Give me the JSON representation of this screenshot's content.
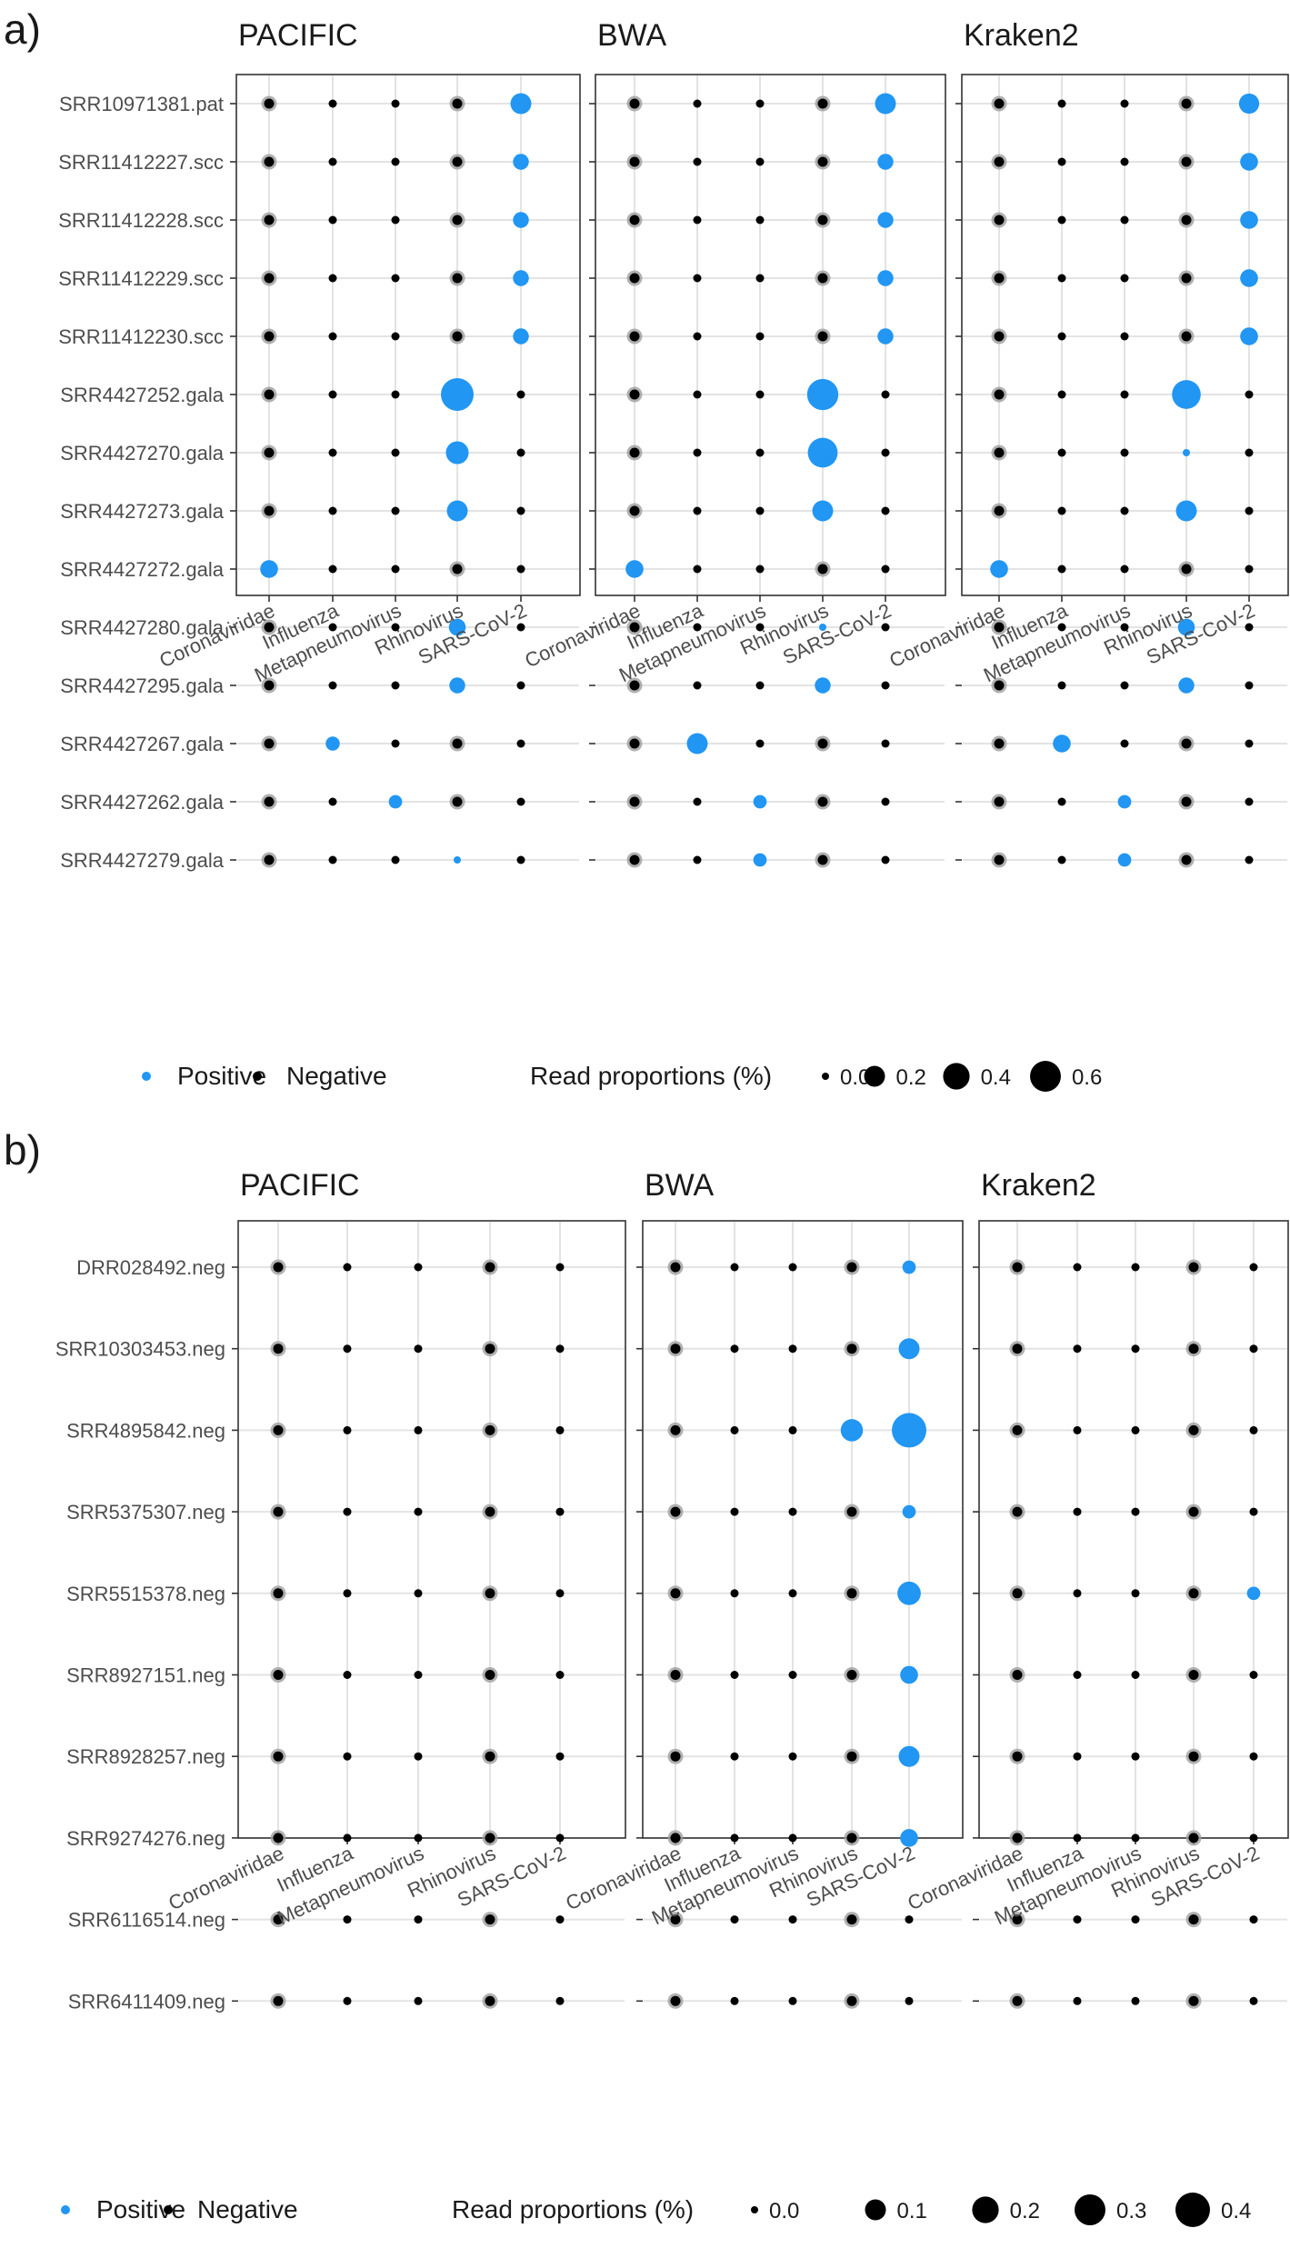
{
  "colors": {
    "positive": "#2196F3",
    "negative": "#000000",
    "halo": "#9e9e9e",
    "grid": "#e3e3e3",
    "panel_border": "#333333",
    "text": "#1a1a1a",
    "tick_text": "#4d4d4d"
  },
  "categories": [
    "Coronaviridae",
    "Influenza",
    "Metapneumovirus",
    "Rhinovirus",
    "SARS-CoV-2"
  ],
  "chart_data": [
    {
      "type": "scatter",
      "tag": "a)",
      "panels": [
        "PACIFIC",
        "BWA",
        "Kraken2"
      ],
      "samples": [
        "SRR10971381.pat",
        "SRR11412227.scc",
        "SRR11412228.scc",
        "SRR11412229.scc",
        "SRR11412230.scc",
        "SRR4427252.gala",
        "SRR4427270.gala",
        "SRR4427273.gala",
        "SRR4427272.gala",
        "SRR4427280.gala",
        "SRR4427295.gala",
        "SRR4427267.gala",
        "SRR4427262.gala",
        "SRR4427279.gala"
      ],
      "positives": {
        "PACIFIC": [
          [
            0,
            4,
            0.2
          ],
          [
            1,
            4,
            0.08
          ],
          [
            2,
            4,
            0.08
          ],
          [
            3,
            4,
            0.08
          ],
          [
            4,
            4,
            0.08
          ],
          [
            5,
            3,
            0.7
          ],
          [
            6,
            3,
            0.26
          ],
          [
            7,
            3,
            0.2
          ],
          [
            8,
            0,
            0.12
          ],
          [
            9,
            3,
            0.1
          ],
          [
            10,
            3,
            0.08
          ],
          [
            11,
            1,
            0.05
          ],
          [
            12,
            2,
            0.04
          ],
          [
            13,
            3,
            0.0
          ]
        ],
        "BWA": [
          [
            0,
            4,
            0.2
          ],
          [
            1,
            4,
            0.08
          ],
          [
            2,
            4,
            0.08
          ],
          [
            3,
            4,
            0.08
          ],
          [
            4,
            4,
            0.08
          ],
          [
            5,
            3,
            0.62
          ],
          [
            6,
            3,
            0.55
          ],
          [
            7,
            3,
            0.2
          ],
          [
            8,
            0,
            0.12
          ],
          [
            9,
            3,
            0.0
          ],
          [
            10,
            3,
            0.08
          ],
          [
            11,
            1,
            0.2
          ],
          [
            12,
            2,
            0.04
          ],
          [
            13,
            2,
            0.04
          ]
        ],
        "Kraken2": [
          [
            0,
            4,
            0.18
          ],
          [
            1,
            4,
            0.12
          ],
          [
            2,
            4,
            0.12
          ],
          [
            3,
            4,
            0.12
          ],
          [
            4,
            4,
            0.12
          ],
          [
            5,
            3,
            0.5
          ],
          [
            6,
            3,
            0.0
          ],
          [
            7,
            3,
            0.2
          ],
          [
            8,
            0,
            0.12
          ],
          [
            9,
            3,
            0.1
          ],
          [
            10,
            3,
            0.08
          ],
          [
            11,
            1,
            0.12
          ],
          [
            12,
            2,
            0.04
          ],
          [
            13,
            2,
            0.04
          ]
        ]
      },
      "halo_cols": [
        0,
        3
      ],
      "legend": {
        "positive_label": "Positive",
        "negative_label": "Negative",
        "size_title": "Read proportions (%)",
        "size_ticks": [
          "0.0",
          "0.2",
          "0.4",
          "0.6"
        ],
        "size_values": [
          0.0,
          0.2,
          0.4,
          0.6
        ]
      }
    },
    {
      "type": "scatter",
      "tag": "b)",
      "panels": [
        "PACIFIC",
        "BWA",
        "Kraken2"
      ],
      "samples": [
        "DRR028492.neg",
        "SRR10303453.neg",
        "SRR4895842.neg",
        "SRR5375307.neg",
        "SRR5515378.neg",
        "SRR8927151.neg",
        "SRR8928257.neg",
        "SRR9274276.neg",
        "SRR6116514.neg",
        "SRR6411409.neg"
      ],
      "positives": {
        "PACIFIC": [],
        "BWA": [
          [
            0,
            4,
            0.02
          ],
          [
            1,
            4,
            0.1
          ],
          [
            2,
            3,
            0.12
          ],
          [
            2,
            4,
            0.4
          ],
          [
            3,
            4,
            0.02
          ],
          [
            4,
            4,
            0.14
          ],
          [
            5,
            4,
            0.06
          ],
          [
            6,
            4,
            0.1
          ],
          [
            7,
            4,
            0.06
          ]
        ],
        "Kraken2": [
          [
            4,
            4,
            0.02
          ]
        ]
      },
      "halo_cols": [
        0,
        3
      ],
      "legend": {
        "positive_label": "Positive",
        "negative_label": "Negative",
        "size_title": "Read proportions (%)",
        "size_ticks": [
          "0.0",
          "0.1",
          "0.2",
          "0.3",
          "0.4"
        ],
        "size_values": [
          0.0,
          0.1,
          0.2,
          0.3,
          0.4
        ]
      }
    }
  ]
}
